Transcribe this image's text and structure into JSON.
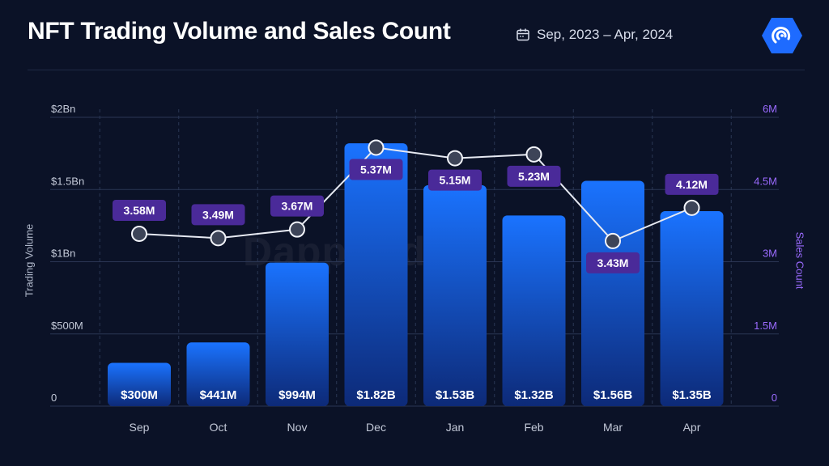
{
  "header": {
    "title": "NFT Trading Volume and Sales Count",
    "date_range": "Sep, 2023 – Apr, 2024"
  },
  "icons": {
    "date": "calendar-icon",
    "brand": "dappradar-logo"
  },
  "watermark": "DappRadar",
  "colors": {
    "background": "#0b1227",
    "bar_top": "#1a73ff",
    "bar_bottom": "#0d2a78",
    "line": "#e6e9f2",
    "label_box": "#4a2a99",
    "sales_axis": "#9b6bff",
    "grid": "#2b3654",
    "logo": "#1e6bff"
  },
  "chart_data": {
    "type": "bar",
    "categories": [
      "Sep",
      "Oct",
      "Nov",
      "Dec",
      "Jan",
      "Feb",
      "Mar",
      "Apr"
    ],
    "series": [
      {
        "name": "Trading Volume",
        "kind": "bar",
        "axis": "left",
        "values": [
          300000000,
          441000000,
          994000000,
          1820000000,
          1530000000,
          1320000000,
          1560000000,
          1350000000
        ],
        "labels": [
          "$300M",
          "$441M",
          "$994M",
          "$1.82B",
          "$1.53B",
          "$1.32B",
          "$1.56B",
          "$1.35B"
        ]
      },
      {
        "name": "Sales Count",
        "kind": "line",
        "axis": "right",
        "values": [
          3580000,
          3490000,
          3670000,
          5370000,
          5150000,
          5230000,
          3430000,
          4120000
        ],
        "labels": [
          "3.58M",
          "3.49M",
          "3.67M",
          "5.37M",
          "5.15M",
          "5.23M",
          "3.43M",
          "4.12M"
        ]
      }
    ],
    "left_axis": {
      "label": "Trading Volume",
      "ylim": [
        0,
        2000000000
      ],
      "ticks": [
        0,
        500000000,
        1000000000,
        1500000000,
        2000000000
      ],
      "tick_labels": [
        "0",
        "$500M",
        "$1Bn",
        "$1.5Bn",
        "$2Bn"
      ]
    },
    "right_axis": {
      "label": "Sales Count",
      "ylim": [
        0,
        6000000
      ],
      "ticks": [
        0,
        1500000,
        3000000,
        4500000,
        6000000
      ],
      "tick_labels": [
        "0",
        "1.5M",
        "3M",
        "4.5M",
        "6M"
      ]
    },
    "grid": true
  }
}
